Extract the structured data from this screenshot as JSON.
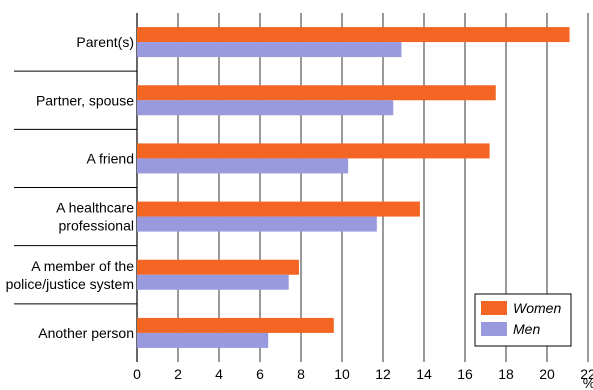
{
  "chart_data": {
    "type": "bar",
    "orientation": "horizontal",
    "categories": [
      [
        "Parent(s)"
      ],
      [
        "Partner, spouse"
      ],
      [
        "A friend"
      ],
      [
        "A healthcare",
        "professional"
      ],
      [
        "A member of the",
        "police/justice system"
      ],
      [
        "Another person"
      ]
    ],
    "series": [
      {
        "name": "Women",
        "color": "#F26522",
        "values": [
          21.1,
          17.5,
          17.2,
          13.8,
          7.9,
          9.6
        ]
      },
      {
        "name": "Men",
        "color": "#9999DD",
        "values": [
          12.9,
          12.5,
          10.3,
          11.7,
          7.4,
          6.4
        ]
      }
    ],
    "xlim": [
      0,
      22
    ],
    "ticks": [
      "0",
      "2",
      "4",
      "6",
      "8",
      "10",
      "12",
      "14",
      "16",
      "18",
      "20",
      "22"
    ],
    "x_unit": "%",
    "legend_position": "bottom-right",
    "grid": "vertical"
  }
}
